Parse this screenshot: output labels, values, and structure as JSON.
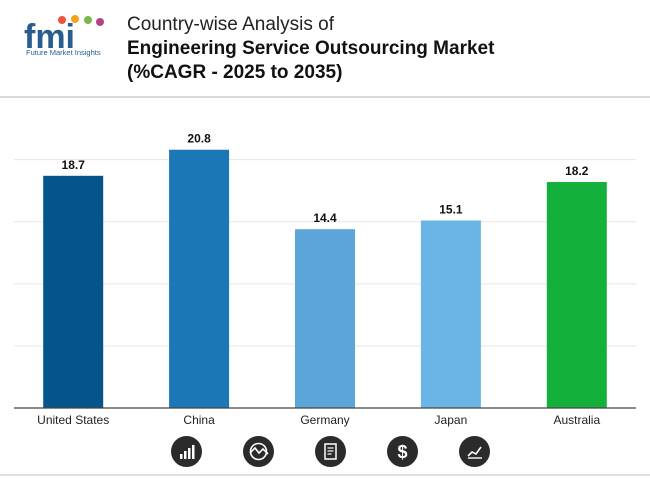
{
  "header": {
    "logo_text": "fmi",
    "logo_caption": "Future Market Insights",
    "title_line1": "Country-wise Analysis of",
    "title_line2": "Engineering Service Outsourcing Market",
    "title_line3": "(%CAGR - 2025 to 2035)"
  },
  "chart_data": {
    "type": "bar",
    "categories": [
      "United States",
      "China",
      "Germany",
      "Japan",
      "Australia"
    ],
    "values": [
      18.7,
      20.8,
      14.4,
      15.1,
      18.2
    ],
    "colors": [
      "#05558c",
      "#1b77b6",
      "#5ba5d8",
      "#6ab5e6",
      "#14b03c"
    ],
    "ylim": [
      0,
      24
    ],
    "gridlines": true,
    "title": "",
    "xlabel": "",
    "ylabel": ""
  },
  "footer": {
    "icons": [
      "bar-chart-icon",
      "trend-globe-icon",
      "report-icon",
      "dollar-icon",
      "line-chart-icon"
    ]
  }
}
